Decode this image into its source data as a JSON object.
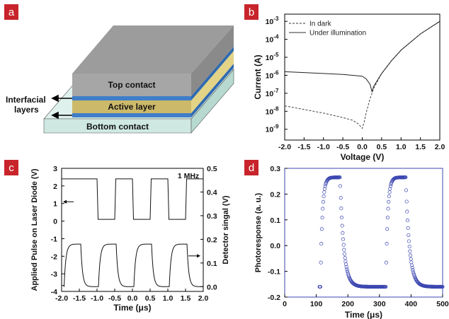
{
  "badges": {
    "a": "a",
    "b": "b",
    "c": "c",
    "d": "d"
  },
  "colors": {
    "badge": "#c8242b",
    "scatter": "#3b46b0",
    "top": "#a6a6a6",
    "blue": "#3f7ec9",
    "active": "#cdb96a",
    "bottom": "#cfe9e2"
  },
  "panel_a": {
    "top_contact": "Top contact",
    "active_layer": "Active layer",
    "bottom_contact": "Bottom contact",
    "interfacial_line1": "Interfacial",
    "interfacial_line2": "layers"
  },
  "chart_data": [
    {
      "type": "line",
      "panel": "b",
      "xlabel": "Voltage (V)",
      "ylabel": "Current (A)",
      "xlim": [
        -2.0,
        2.0
      ],
      "ylim_log10": [
        -9.6,
        -2.6
      ],
      "yscale": "log",
      "xticks": [
        "-2.0",
        "-1.5",
        "-1.0",
        "-0.5",
        "0.0",
        "0.5",
        "1.0",
        "1.5",
        "2.0"
      ],
      "yticks": [
        -3,
        -4,
        -5,
        -6,
        -7,
        -8,
        -9
      ],
      "ytick_base": "10",
      "legend_position": "top-left",
      "series": [
        {
          "name": "In dark",
          "style": "dashed",
          "x": [
            -2.0,
            -1.5,
            -1.0,
            -0.5,
            -0.25,
            -0.1,
            0.0,
            0.05,
            0.1,
            0.2,
            0.3,
            0.5,
            0.75,
            1.0,
            1.5,
            2.0
          ],
          "log10_y": [
            -7.7,
            -7.9,
            -8.1,
            -8.35,
            -8.5,
            -8.7,
            -8.95,
            -8.6,
            -8.1,
            -7.3,
            -6.7,
            -5.9,
            -5.2,
            -4.6,
            -3.7,
            -3.0
          ]
        },
        {
          "name": "Under illumination",
          "style": "solid",
          "x": [
            -2.0,
            -1.5,
            -1.0,
            -0.5,
            0.0,
            0.1,
            0.2,
            0.25,
            0.3,
            0.5,
            0.75,
            1.0,
            1.5,
            2.0
          ],
          "log10_y": [
            -5.8,
            -5.85,
            -5.9,
            -5.95,
            -6.05,
            -6.2,
            -6.5,
            -6.9,
            -6.6,
            -5.9,
            -5.2,
            -4.6,
            -3.7,
            -3.0
          ]
        }
      ]
    },
    {
      "type": "line",
      "panel": "c",
      "xlabel": "Time (μs)",
      "ylabel": "Applied Pulse on Laser Diode (V)",
      "ylabel_right": "Detector singal (V)",
      "annotation": "1 MHz",
      "xlim": [
        -2.0,
        2.0
      ],
      "ylim": [
        -4,
        3
      ],
      "ylim_right": [
        -0.02,
        0.5
      ],
      "xticks": [
        "-2.0",
        "-1.5",
        "-1.0",
        "-0.5",
        "0.0",
        "0.5",
        "1.0",
        "1.5",
        "2.0"
      ],
      "yticks": [
        "3",
        "2",
        "1",
        "0",
        "-1",
        "-2",
        "-3",
        "-4"
      ],
      "yticks_right": [
        "0.5",
        "0.4",
        "0.3",
        "0.2",
        "0.1",
        "0.0"
      ],
      "series": [
        {
          "name": "",
          "axis": "left",
          "high": 2.4,
          "low": 0.1,
          "rise_times": [
            -1.5,
            -0.5,
            0.5,
            1.5
          ],
          "fall_times": [
            -1.0,
            0.0,
            1.0
          ]
        },
        {
          "name": "",
          "axis": "right",
          "high": 0.18,
          "low": 0.0,
          "rise_times": [
            -1.93,
            -0.96,
            0.04,
            1.04
          ],
          "fall_times": [
            -1.46,
            -0.46,
            0.54,
            1.54
          ]
        }
      ]
    },
    {
      "type": "scatter",
      "panel": "d",
      "xlabel": "Time (μs)",
      "ylabel": "Photoresponse (a. u.)",
      "xlim": [
        0,
        500
      ],
      "ylim": [
        -0.2,
        0.3
      ],
      "xticks": [
        "0",
        "100",
        "200",
        "300",
        "400",
        "500"
      ],
      "yticks": [
        "0.3",
        "0.2",
        "0.1",
        "0.0",
        "-0.1",
        "-0.2"
      ],
      "series": [
        {
          "name": "",
          "high": 0.265,
          "low": -0.16,
          "pulses": [
            {
              "rise": 113,
              "fall": 175
            },
            {
              "rise": 320,
              "fall": 383
            }
          ],
          "x_range": [
            110,
            500
          ]
        }
      ]
    }
  ]
}
